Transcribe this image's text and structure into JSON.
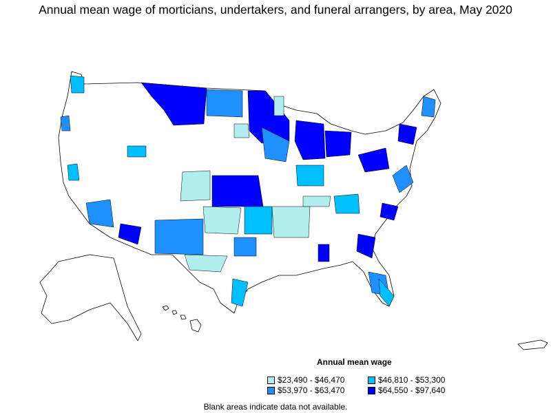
{
  "title": "Annual mean wage of morticians, undertakers, and funeral arrangers, by area, May 2020",
  "legend": {
    "title": "Annual mean wage",
    "items": [
      {
        "label": "$23,490 - $46,470",
        "color": "#b2eeee"
      },
      {
        "label": "$46,810 - $53,300",
        "color": "#00bfff"
      },
      {
        "label": "$53,970 - $63,470",
        "color": "#1e90ff"
      },
      {
        "label": "$64,550 - $97,640",
        "color": "#0000ff"
      }
    ]
  },
  "note": "Blank areas indicate data not available.",
  "colors": {
    "tier1": "#b2eeee",
    "tier2": "#00bfff",
    "tier3": "#1e90ff",
    "tier4": "#0000ff",
    "blank": "#ffffff",
    "border": "#000000"
  }
}
